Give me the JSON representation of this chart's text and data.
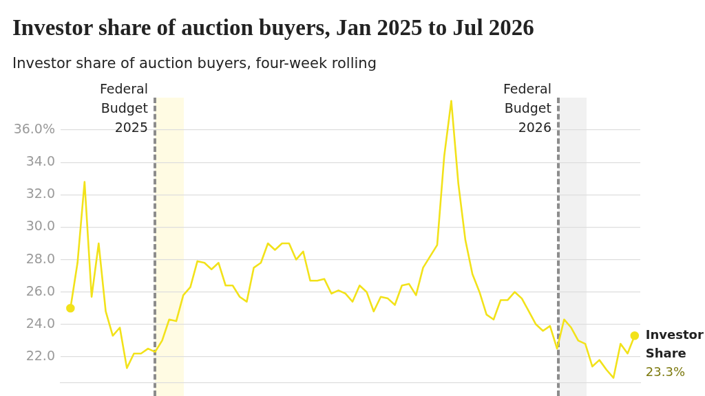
{
  "chart_data": {
    "type": "line",
    "title": "Investor share of auction buyers, Jan 2025 to Jul 2026",
    "subtitle": "Investor share of auction buyers, four-week rolling",
    "categories": [
      null,
      null,
      null,
      null,
      null,
      null,
      null,
      null,
      null,
      null,
      null,
      null,
      null,
      null,
      null,
      null,
      null,
      null,
      null,
      null,
      null,
      null,
      null,
      null,
      null,
      null,
      null,
      null,
      null,
      null,
      null,
      null,
      null,
      null,
      null,
      null,
      null,
      null,
      null,
      null,
      null,
      null,
      null,
      null,
      null,
      null,
      null,
      null,
      null,
      null,
      null,
      null,
      null,
      null,
      null,
      null,
      null,
      null,
      null,
      null,
      null,
      null,
      null,
      null,
      null,
      null,
      null,
      null,
      null,
      null,
      null,
      null,
      null,
      null,
      null,
      null,
      null,
      null,
      null,
      null,
      null
    ],
    "series": [
      {
        "name": "Investor Share",
        "color": "#f2e21a",
        "values": [
          25.0,
          27.8,
          32.8,
          25.7,
          29.0,
          24.8,
          23.3,
          23.8,
          21.3,
          22.2,
          22.2,
          22.5,
          22.3,
          23.0,
          24.3,
          24.2,
          25.8,
          26.3,
          27.9,
          27.8,
          27.4,
          27.8,
          26.4,
          26.4,
          25.7,
          25.4,
          27.5,
          27.8,
          29.0,
          28.6,
          29.0,
          29.0,
          28.0,
          28.5,
          26.7,
          26.7,
          26.8,
          25.9,
          26.1,
          25.9,
          25.4,
          26.4,
          26.0,
          24.8,
          25.7,
          25.6,
          25.2,
          26.4,
          26.5,
          25.8,
          27.5,
          28.2,
          28.9,
          34.4,
          37.8,
          32.7,
          29.2,
          27.1,
          26.0,
          24.6,
          24.3,
          25.5,
          25.5,
          26.0,
          25.6,
          24.8,
          24.0,
          23.6,
          23.9,
          22.5,
          24.3,
          23.8,
          23.0,
          22.8,
          21.4,
          21.8,
          21.2,
          20.7,
          22.8,
          22.2,
          23.3
        ],
        "value_labels": [
          null,
          null,
          null,
          null,
          null,
          null,
          null,
          null,
          null,
          null,
          null,
          null,
          null,
          null,
          null,
          null,
          null,
          null,
          null,
          null,
          null,
          null,
          null,
          null,
          null,
          null,
          null,
          null,
          null,
          null,
          null,
          null,
          null,
          null,
          null,
          null,
          null,
          null,
          null,
          null,
          null,
          null,
          null,
          null,
          null,
          null,
          null,
          null,
          null,
          null,
          null,
          null,
          null,
          null,
          null,
          null,
          null,
          null,
          null,
          null,
          null,
          null,
          null,
          null,
          null,
          null,
          null,
          null,
          null,
          null,
          null,
          null,
          null,
          null,
          null,
          null,
          null,
          null,
          null,
          null,
          "23.3%"
        ]
      }
    ],
    "ylim": [
      20.4,
      38
    ],
    "yticks": [
      {
        "value": 22,
        "label": "22.0"
      },
      {
        "value": 24,
        "label": "24.0"
      },
      {
        "value": 26,
        "label": "26.0"
      },
      {
        "value": 28,
        "label": "28.0"
      },
      {
        "value": 30,
        "label": "30.0"
      },
      {
        "value": 32,
        "label": "32.0"
      },
      {
        "value": 34,
        "label": "34.0"
      },
      {
        "value": 36,
        "label": "36.0%"
      }
    ],
    "tick_labels": "y",
    "grid": "y",
    "legend": "right",
    "line_style": "solid",
    "annotations": [
      "Federal Budget 2025",
      "Federal Budget 2026"
    ]
  }
}
